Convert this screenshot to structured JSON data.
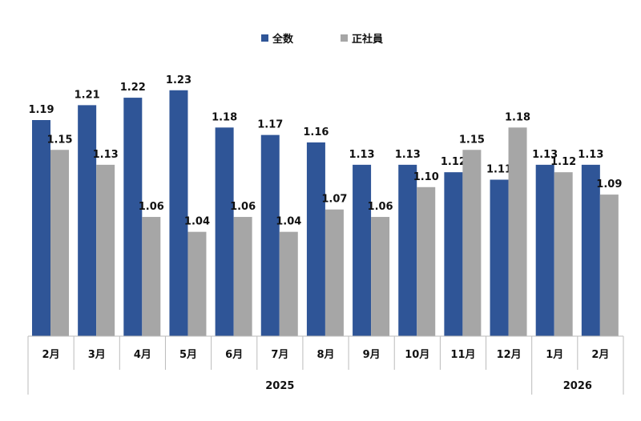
{
  "chart_data": {
    "type": "bar",
    "title": "",
    "xlabel": "",
    "ylabel": "",
    "ylim": [
      0.9,
      1.25
    ],
    "grid": false,
    "legend_position": "top-center",
    "categories": [
      "2月",
      "3月",
      "4月",
      "5月",
      "6月",
      "7月",
      "8月",
      "9月",
      "10月",
      "11月",
      "12月",
      "1月",
      "2月"
    ],
    "year_groups": [
      {
        "label": "2025",
        "count": 11
      },
      {
        "label": "2026",
        "count": 2
      }
    ],
    "series": [
      {
        "name": "全数",
        "color": "#2F5597",
        "values": [
          1.19,
          1.21,
          1.22,
          1.23,
          1.18,
          1.17,
          1.16,
          1.13,
          1.13,
          1.12,
          1.11,
          1.13,
          1.13
        ]
      },
      {
        "name": "正社員",
        "color": "#A6A6A6",
        "values": [
          1.15,
          1.13,
          1.06,
          1.04,
          1.06,
          1.04,
          1.07,
          1.06,
          1.1,
          1.15,
          1.18,
          1.12,
          1.09
        ]
      }
    ]
  }
}
